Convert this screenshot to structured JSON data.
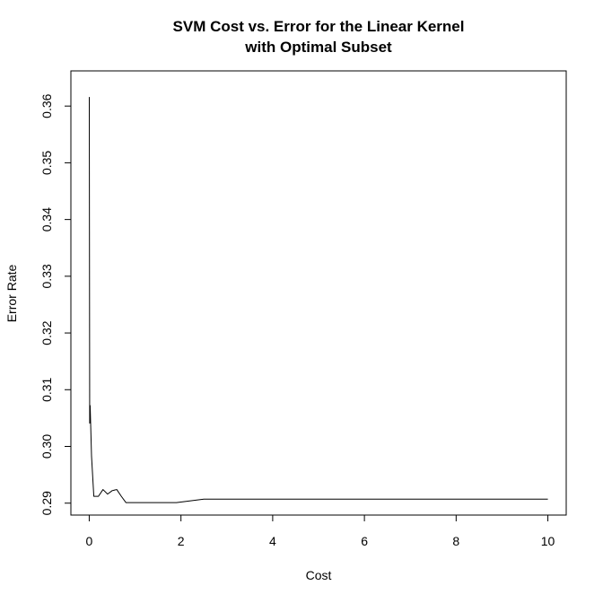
{
  "chart_data": {
    "type": "line",
    "title_lines": [
      "SVM Cost vs. Error for the Linear Kernel",
      "with Optimal Subset"
    ],
    "xlabel": "Cost",
    "ylabel": "Error Rate",
    "xlim": [
      -0.4,
      10.4
    ],
    "ylim": [
      0.2879,
      0.3662
    ],
    "x_ticks": [
      0,
      2,
      4,
      6,
      8,
      10
    ],
    "y_ticks": [
      0.29,
      0.3,
      0.31,
      0.32,
      0.33,
      0.34,
      0.35,
      0.36
    ],
    "x_tick_labels": [
      "0",
      "2",
      "4",
      "6",
      "8",
      "10"
    ],
    "y_tick_labels": [
      "0.29",
      "0.30",
      "0.31",
      "0.32",
      "0.33",
      "0.34",
      "0.35",
      "0.36"
    ],
    "grid": false,
    "legend": "none",
    "line_color": "#000000",
    "series": [
      {
        "x": [
          0.001,
          0.01,
          0.02,
          0.05,
          0.1,
          0.2,
          0.3,
          0.4,
          0.5,
          0.6,
          0.7,
          0.8,
          1.0,
          1.9,
          2.5,
          5,
          10
        ],
        "y": [
          0.3616,
          0.3041,
          0.3072,
          0.2983,
          0.2912,
          0.2912,
          0.2924,
          0.2916,
          0.2922,
          0.2924,
          0.2912,
          0.2901,
          0.2901,
          0.2901,
          0.2907,
          0.2907,
          0.2907
        ]
      }
    ]
  }
}
